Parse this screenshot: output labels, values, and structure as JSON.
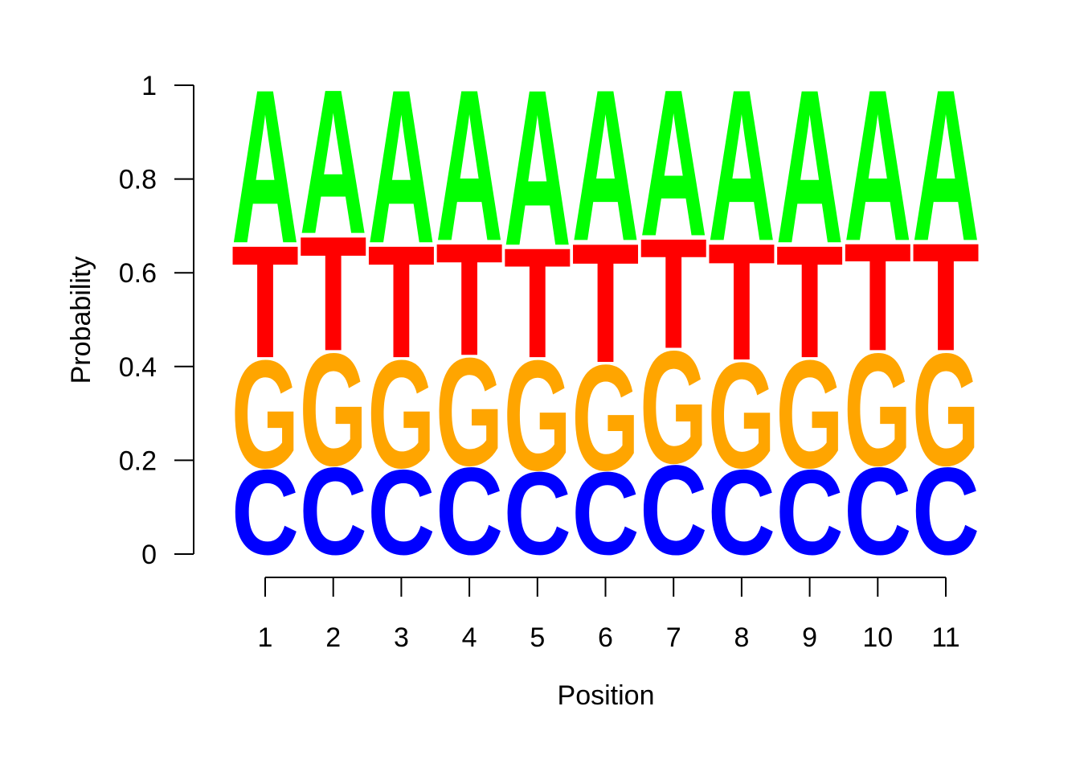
{
  "chart_data": {
    "type": "sequence-logo",
    "xlabel": "Position",
    "ylabel": "Probability",
    "ylim": [
      0,
      1
    ],
    "y_ticks": [
      "0",
      "0.2",
      "0.4",
      "0.6",
      "0.8",
      "1"
    ],
    "y_tick_values": [
      0,
      0.2,
      0.4,
      0.6,
      0.8,
      1
    ],
    "positions": [
      "1",
      "2",
      "3",
      "4",
      "5",
      "6",
      "7",
      "8",
      "9",
      "10",
      "11"
    ],
    "letters": [
      "C",
      "G",
      "T",
      "A"
    ],
    "colors": {
      "A": "#00ff00",
      "C": "#0000ff",
      "G": "#ffa500",
      "T": "#ff0000"
    },
    "series": [
      {
        "name": "C",
        "values": [
          0.185,
          0.19,
          0.185,
          0.19,
          0.18,
          0.18,
          0.195,
          0.185,
          0.185,
          0.19,
          0.19
        ]
      },
      {
        "name": "G",
        "values": [
          0.235,
          0.245,
          0.235,
          0.235,
          0.24,
          0.23,
          0.245,
          0.23,
          0.235,
          0.245,
          0.245
        ]
      },
      {
        "name": "T",
        "values": [
          0.245,
          0.25,
          0.245,
          0.245,
          0.24,
          0.26,
          0.24,
          0.255,
          0.245,
          0.235,
          0.235
        ]
      },
      {
        "name": "A",
        "values": [
          0.335,
          0.315,
          0.335,
          0.33,
          0.34,
          0.33,
          0.32,
          0.33,
          0.335,
          0.33,
          0.33
        ]
      }
    ]
  }
}
